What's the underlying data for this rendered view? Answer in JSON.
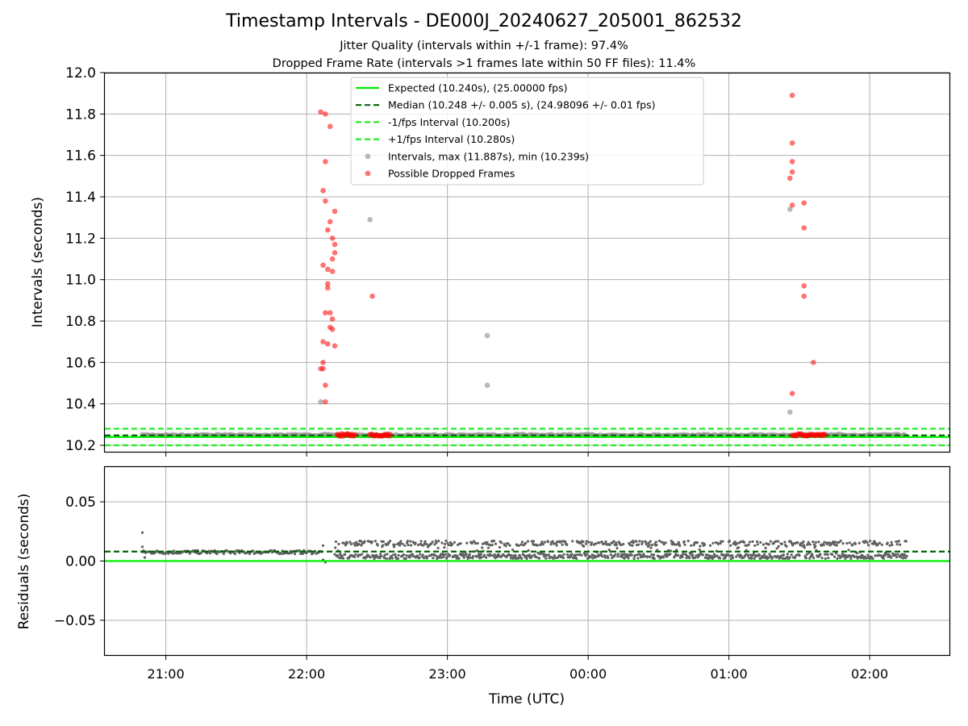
{
  "figure": {
    "title": "Timestamp Intervals - DE000J_20240627_205001_862532",
    "subtitle_jitter": "Jitter Quality (intervals within +/-1 frame): 97.4%",
    "subtitle_dropped": "Dropped Frame Rate (intervals >1 frames late within 50 FF files): 11.4%"
  },
  "colors": {
    "expected": "#00ee00",
    "median": "#006400",
    "interval_lines": "#22ee22",
    "intervals": "#808080",
    "dropped": "#ff0000",
    "grid": "#b0b0b0"
  },
  "chart_data": [
    {
      "type": "scatter",
      "id": "intervals",
      "xlabel": "",
      "ylabel": "Intervals (seconds)",
      "xlim": [
        "20:34",
        "02:34"
      ],
      "ylim": [
        10.165,
        12.0
      ],
      "yticks": [
        "10.2",
        "10.4",
        "10.6",
        "10.8",
        "11.0",
        "11.2",
        "11.4",
        "11.6",
        "11.8",
        "12.0"
      ],
      "grid": true,
      "legend_position": "top-center",
      "reference_lines": [
        {
          "name": "Expected (10.240s), (25.00000 fps)",
          "y": 10.24,
          "style": "solid",
          "color": "#00ee00"
        },
        {
          "name": "Median (10.248 +/- 0.005 s), (24.98096 +/- 0.01 fps)",
          "y": 10.248,
          "style": "dashed",
          "color": "#006400"
        },
        {
          "name": "-1/fps Interval (10.200s)",
          "y": 10.2,
          "style": "dashed",
          "color": "#22ee22"
        },
        {
          "name": "+1/fps Interval (10.280s)",
          "y": 10.28,
          "style": "dashed",
          "color": "#22ee22"
        }
      ],
      "series": [
        {
          "name": "Intervals, max (11.887s), min (10.239s)",
          "color": "#808080",
          "baseline": {
            "y": 10.25,
            "x_start": "20:50",
            "x_end": "02:16"
          },
          "points": [
            {
              "x": "22:06",
              "y": 10.41
            },
            {
              "x": "22:27",
              "y": 11.29
            },
            {
              "x": "23:17",
              "y": 10.73
            },
            {
              "x": "23:17",
              "y": 10.49
            },
            {
              "x": "01:26",
              "y": 11.34
            },
            {
              "x": "01:26",
              "y": 10.36
            }
          ]
        },
        {
          "name": "Possible Dropped Frames",
          "color": "#ff0000",
          "baseline_ranges": [
            {
              "x_start": "22:13",
              "x_end": "22:21",
              "y": 10.25
            },
            {
              "x_start": "22:27",
              "x_end": "22:36",
              "y": 10.25
            },
            {
              "x_start": "01:27",
              "x_end": "01:41",
              "y": 10.25
            }
          ],
          "points": [
            {
              "x": "22:06",
              "y": 11.81
            },
            {
              "x": "22:08",
              "y": 11.8
            },
            {
              "x": "22:10",
              "y": 11.74
            },
            {
              "x": "22:08",
              "y": 11.57
            },
            {
              "x": "22:07",
              "y": 11.43
            },
            {
              "x": "22:08",
              "y": 11.38
            },
            {
              "x": "22:12",
              "y": 11.33
            },
            {
              "x": "22:10",
              "y": 11.28
            },
            {
              "x": "22:09",
              "y": 11.24
            },
            {
              "x": "22:11",
              "y": 11.2
            },
            {
              "x": "22:12",
              "y": 11.17
            },
            {
              "x": "22:12",
              "y": 11.13
            },
            {
              "x": "22:11",
              "y": 11.1
            },
            {
              "x": "22:07",
              "y": 11.07
            },
            {
              "x": "22:09",
              "y": 11.05
            },
            {
              "x": "22:11",
              "y": 11.04
            },
            {
              "x": "22:09",
              "y": 10.98
            },
            {
              "x": "22:09",
              "y": 10.96
            },
            {
              "x": "22:08",
              "y": 10.84
            },
            {
              "x": "22:10",
              "y": 10.84
            },
            {
              "x": "22:11",
              "y": 10.81
            },
            {
              "x": "22:10",
              "y": 10.77
            },
            {
              "x": "22:11",
              "y": 10.76
            },
            {
              "x": "22:07",
              "y": 10.7
            },
            {
              "x": "22:09",
              "y": 10.69
            },
            {
              "x": "22:12",
              "y": 10.68
            },
            {
              "x": "22:07",
              "y": 10.6
            },
            {
              "x": "22:06",
              "y": 10.57
            },
            {
              "x": "22:07",
              "y": 10.57
            },
            {
              "x": "22:08",
              "y": 10.49
            },
            {
              "x": "22:08",
              "y": 10.41
            },
            {
              "x": "22:28",
              "y": 10.92
            },
            {
              "x": "01:27",
              "y": 11.89
            },
            {
              "x": "01:27",
              "y": 11.66
            },
            {
              "x": "01:27",
              "y": 11.57
            },
            {
              "x": "01:27",
              "y": 11.52
            },
            {
              "x": "01:26",
              "y": 11.49
            },
            {
              "x": "01:27",
              "y": 11.36
            },
            {
              "x": "01:32",
              "y": 11.37
            },
            {
              "x": "01:32",
              "y": 11.25
            },
            {
              "x": "01:32",
              "y": 10.97
            },
            {
              "x": "01:32",
              "y": 10.92
            },
            {
              "x": "01:36",
              "y": 10.6
            },
            {
              "x": "01:27",
              "y": 10.45
            }
          ]
        }
      ]
    },
    {
      "type": "scatter",
      "id": "residuals",
      "xlabel": "Time (UTC)",
      "ylabel": "Residuals (seconds)",
      "xlim": [
        "20:34",
        "02:34"
      ],
      "ylim": [
        -0.08,
        0.08
      ],
      "xticks": [
        "21:00",
        "22:00",
        "23:00",
        "00:00",
        "01:00",
        "02:00"
      ],
      "yticks": [
        "−0.05",
        "0.00",
        "0.05"
      ],
      "grid": true,
      "reference_lines": [
        {
          "y": 0.0,
          "style": "solid",
          "color": "#00ee00"
        },
        {
          "y": 0.008,
          "style": "dashed",
          "color": "#006400"
        }
      ],
      "series": [
        {
          "name": "Residuals",
          "color": "#606060",
          "segments": [
            {
              "x_start": "20:50",
              "x_end": "22:07",
              "y_min": 0.006,
              "y_max": 0.009
            },
            {
              "x_start": "22:12",
              "x_end": "02:16",
              "y_min": 0.002,
              "y_max": 0.017
            }
          ],
          "points": [
            {
              "x": "20:50",
              "y": 0.024
            },
            {
              "x": "20:50",
              "y": 0.012
            },
            {
              "x": "20:51",
              "y": 0.003
            },
            {
              "x": "22:07",
              "y": 0.013
            },
            {
              "x": "22:07",
              "y": 0.001
            },
            {
              "x": "22:08",
              "y": -0.001
            }
          ]
        }
      ]
    }
  ]
}
